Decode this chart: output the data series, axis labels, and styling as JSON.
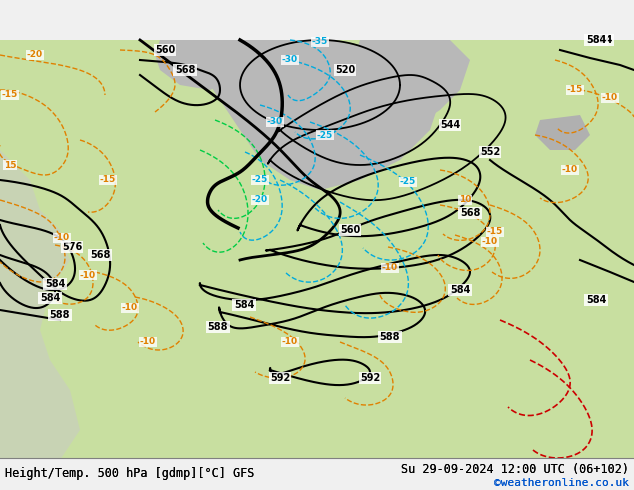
{
  "title_left": "Height/Temp. 500 hPa [gdmp][°C] GFS",
  "title_right": "Su 29-09-2024 12:00 UTC (06+102)",
  "credit": "©weatheronline.co.uk",
  "bg_color": "#d0d0d0",
  "map_bg_light_green": "#c8e6a0",
  "map_bg_gray": "#b0b0b0",
  "map_land_light": "#e8e8e8",
  "bottom_bar_color": "#f0f0f0",
  "title_font_size": 9,
  "credit_color": "#0055cc"
}
